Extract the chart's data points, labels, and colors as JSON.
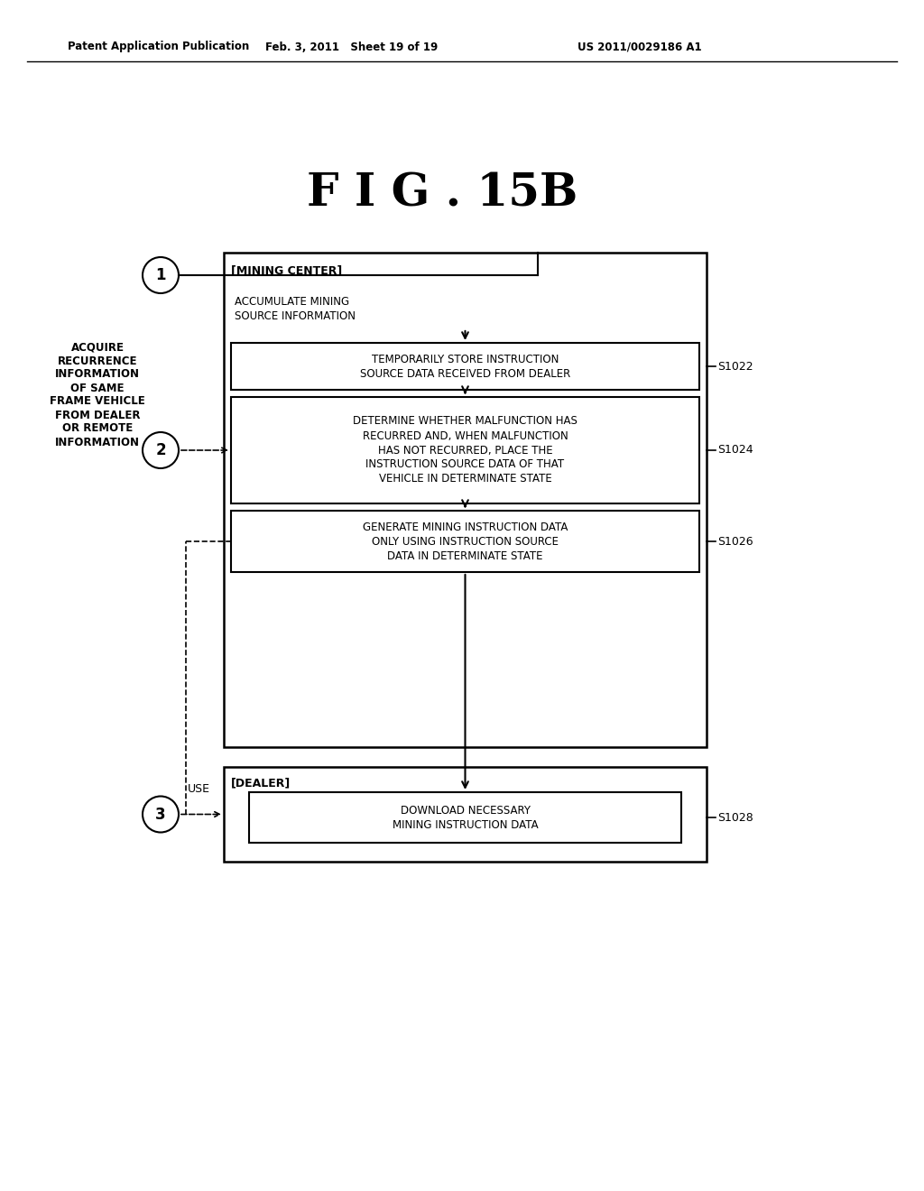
{
  "background_color": "#ffffff",
  "header_left": "Patent Application Publication",
  "header_mid": "Feb. 3, 2011   Sheet 19 of 19",
  "header_right": "US 2011/0029186 A1",
  "title": "F I G . 15B",
  "left_text_lines": [
    "ACQUIRE",
    "RECURRENCE",
    "INFORMATION",
    "OF SAME",
    "FRAME VEHICLE",
    "FROM DEALER",
    "OR REMOTE",
    "INFORMATION"
  ],
  "circle1_label": "1",
  "circle2_label": "2",
  "circle3_label": "3",
  "mining_center_label": "[MINING CENTER]",
  "dealer_label": "[DEALER]",
  "box_accumulate": "ACCUMULATE MINING\nSOURCE INFORMATION",
  "box_s1022": "TEMPORARILY STORE INSTRUCTION\nSOURCE DATA RECEIVED FROM DEALER",
  "box_s1024": "DETERMINE WHETHER MALFUNCTION HAS\nRECURRED AND, WHEN MALFUNCTION\nHAS NOT RECURRED, PLACE THE\nINSTRUCTION SOURCE DATA OF THAT\nVEHICLE IN DETERMINATE STATE",
  "box_s1026": "GENERATE MINING INSTRUCTION DATA\nONLY USING INSTRUCTION SOURCE\nDATA IN DETERMINATE STATE",
  "box_s1028": "DOWNLOAD NECESSARY\nMINING INSTRUCTION DATA",
  "label_s1022": "S1022",
  "label_s1024": "S1024",
  "label_s1026": "S1026",
  "label_s1028": "S1028",
  "use_label": "USE"
}
